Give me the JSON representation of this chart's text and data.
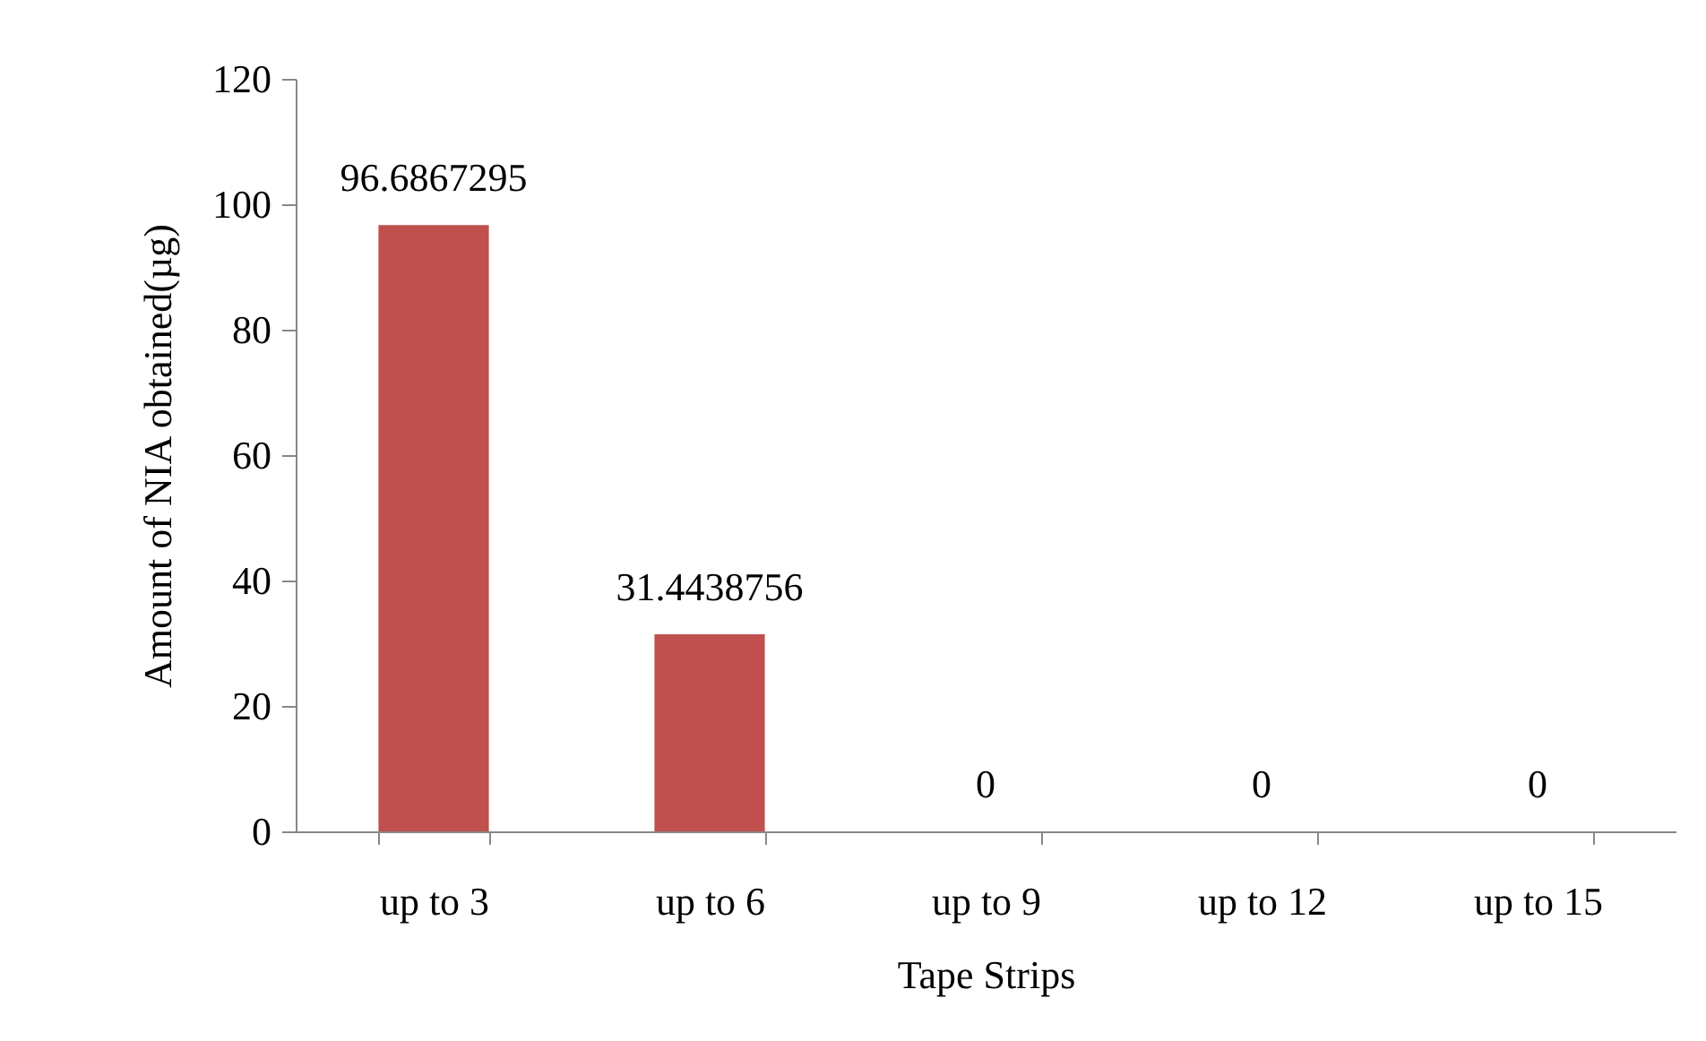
{
  "chart_data": {
    "type": "bar",
    "xlabel": "Tape Strips",
    "ylabel": "Amount of NIA obtained(µg)",
    "categories": [
      "up to 3",
      "up to 6",
      "up to 9",
      "up to 12",
      "up to 15"
    ],
    "values": [
      96.6867295,
      31.4438756,
      0,
      0,
      0
    ],
    "color": "#c0504d",
    "ylim": [
      0,
      120
    ],
    "yticks": [
      0,
      20,
      40,
      60,
      80,
      100,
      120
    ],
    "grid": false,
    "data_labels": true
  }
}
